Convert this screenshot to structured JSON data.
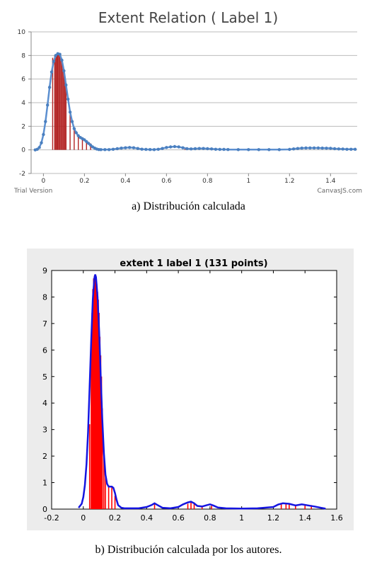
{
  "captions": {
    "a": "a) Distribución calculada",
    "b": "b) Distribución calculada por los autores."
  },
  "watermarks": {
    "left": "Trial Version",
    "right": "CanvasJS.com"
  },
  "chart_data": [
    {
      "type": "line",
      "title": "Extent Relation ( Label 1)",
      "xlabel": "",
      "ylabel": "",
      "xlim": [
        -0.06,
        1.53
      ],
      "ylim": [
        -2,
        10
      ],
      "x_ticks": [
        0,
        0.2,
        0.4,
        0.6,
        0.8,
        1,
        1.2,
        1.4
      ],
      "x_tick_labels": [
        "0",
        "0.2",
        "0.4",
        "0.6",
        "0.8",
        "1",
        "1.2",
        "1.4"
      ],
      "y_ticks": [
        -2,
        0,
        2,
        4,
        6,
        8,
        10
      ],
      "y_tick_labels": [
        "-2",
        "0",
        "2",
        "4",
        "6",
        "8",
        "10"
      ],
      "grid": "horizontal",
      "colors": {
        "curve": "#5b8fd0",
        "markers": "#4a7fbf",
        "spikes": "#b22222",
        "grid": "#bbbbbb"
      },
      "series": [
        {
          "x": [
            -0.04,
            -0.03,
            -0.02,
            -0.01,
            0,
            0.01,
            0.02,
            0.03,
            0.04,
            0.05,
            0.06,
            0.07,
            0.08,
            0.09,
            0.1,
            0.11,
            0.12,
            0.13,
            0.14,
            0.15,
            0.16,
            0.17,
            0.18,
            0.19,
            0.2,
            0.21,
            0.22,
            0.23,
            0.24,
            0.25,
            0.26,
            0.27,
            0.28,
            0.3,
            0.32,
            0.34,
            0.36,
            0.38,
            0.4,
            0.42,
            0.44,
            0.46,
            0.48,
            0.5,
            0.52,
            0.54,
            0.56,
            0.58,
            0.6,
            0.62,
            0.64,
            0.66,
            0.68,
            0.7,
            0.72,
            0.74,
            0.76,
            0.78,
            0.8,
            0.82,
            0.84,
            0.86,
            0.88,
            0.9,
            0.95,
            1.0,
            1.05,
            1.1,
            1.15,
            1.2,
            1.22,
            1.24,
            1.26,
            1.28,
            1.3,
            1.32,
            1.34,
            1.36,
            1.38,
            1.4,
            1.42,
            1.44,
            1.46,
            1.48,
            1.5,
            1.52
          ],
          "y": [
            0,
            0.05,
            0.2,
            0.6,
            1.3,
            2.4,
            3.8,
            5.3,
            6.6,
            7.5,
            8.0,
            8.15,
            8.1,
            7.6,
            6.7,
            5.5,
            4.3,
            3.2,
            2.4,
            1.8,
            1.45,
            1.2,
            1.05,
            0.95,
            0.85,
            0.7,
            0.55,
            0.4,
            0.25,
            0.15,
            0.07,
            0.03,
            0.02,
            0.02,
            0.02,
            0.05,
            0.1,
            0.15,
            0.18,
            0.2,
            0.18,
            0.12,
            0.06,
            0.04,
            0.03,
            0.02,
            0.05,
            0.12,
            0.2,
            0.25,
            0.28,
            0.25,
            0.18,
            0.1,
            0.08,
            0.1,
            0.12,
            0.12,
            0.1,
            0.08,
            0.05,
            0.04,
            0.04,
            0.03,
            0.02,
            0.02,
            0.02,
            0.02,
            0.02,
            0.04,
            0.08,
            0.12,
            0.15,
            0.16,
            0.16,
            0.16,
            0.16,
            0.15,
            0.14,
            0.13,
            0.1,
            0.08,
            0.07,
            0.05,
            0.05,
            0.05
          ]
        }
      ],
      "spikes_x": [
        0.045,
        0.055,
        0.06,
        0.065,
        0.07,
        0.075,
        0.08,
        0.085,
        0.09,
        0.095,
        0.1,
        0.105,
        0.11,
        0.13,
        0.15,
        0.17,
        0.19,
        0.21,
        0.23,
        0.69
      ],
      "spikes_y": [
        7.8,
        8.0,
        8.1,
        8.1,
        8.1,
        8.2,
        8.1,
        7.9,
        7.6,
        7.2,
        6.7,
        6.2,
        5.5,
        3.2,
        1.8,
        1.2,
        0.95,
        0.8,
        0.55,
        0.2
      ]
    },
    {
      "type": "line",
      "title": "extent 1 label 1 (131 points)",
      "xlabel": "",
      "ylabel": "",
      "xlim": [
        -0.2,
        1.6
      ],
      "ylim": [
        0,
        9
      ],
      "x_ticks": [
        -0.2,
        0,
        0.2,
        0.4,
        0.6,
        0.8,
        1,
        1.2,
        1.4,
        1.6
      ],
      "x_tick_labels": [
        "-0.2",
        "0",
        "0.2",
        "0.4",
        "0.6",
        "0.8",
        "1",
        "1.2",
        "1.4",
        "1.6"
      ],
      "y_ticks": [
        0,
        1,
        2,
        3,
        4,
        5,
        6,
        7,
        8,
        9
      ],
      "y_tick_labels": [
        "0",
        "1",
        "2",
        "3",
        "4",
        "5",
        "6",
        "7",
        "8",
        "9"
      ],
      "grid": "off",
      "colors": {
        "curve": "#1515e0",
        "spikes": "#ff0000",
        "background": "#ececec"
      },
      "series": [
        {
          "x": [
            -0.03,
            -0.01,
            0,
            0.01,
            0.02,
            0.03,
            0.04,
            0.05,
            0.06,
            0.07,
            0.075,
            0.08,
            0.09,
            0.1,
            0.11,
            0.12,
            0.13,
            0.14,
            0.15,
            0.16,
            0.17,
            0.18,
            0.19,
            0.2,
            0.21,
            0.22,
            0.24,
            0.26,
            0.28,
            0.3,
            0.35,
            0.4,
            0.43,
            0.45,
            0.47,
            0.5,
            0.55,
            0.6,
            0.63,
            0.66,
            0.68,
            0.7,
            0.72,
            0.75,
            0.78,
            0.8,
            0.82,
            0.85,
            0.9,
            1.0,
            1.1,
            1.2,
            1.23,
            1.26,
            1.3,
            1.34,
            1.38,
            1.42,
            1.46,
            1.5,
            1.53
          ],
          "y": [
            0.05,
            0.2,
            0.45,
            0.9,
            1.7,
            2.9,
            4.6,
            6.4,
            7.9,
            8.7,
            8.85,
            8.75,
            8.0,
            6.7,
            5.0,
            3.4,
            2.1,
            1.3,
            0.95,
            0.85,
            0.85,
            0.85,
            0.8,
            0.6,
            0.35,
            0.15,
            0.05,
            0.03,
            0.03,
            0.03,
            0.03,
            0.08,
            0.15,
            0.22,
            0.15,
            0.05,
            0.03,
            0.08,
            0.18,
            0.25,
            0.28,
            0.22,
            0.12,
            0.1,
            0.15,
            0.18,
            0.14,
            0.06,
            0.03,
            0.02,
            0.03,
            0.08,
            0.17,
            0.22,
            0.2,
            0.14,
            0.18,
            0.14,
            0.1,
            0.05,
            0.02
          ]
        }
      ],
      "spikes_x": [
        0.04,
        0.05,
        0.055,
        0.06,
        0.065,
        0.07,
        0.075,
        0.08,
        0.085,
        0.09,
        0.095,
        0.1,
        0.105,
        0.11,
        0.115,
        0.12,
        0.13,
        0.14,
        0.16,
        0.18,
        0.2,
        0.45,
        0.66,
        0.68,
        0.7,
        0.75,
        0.81,
        1.25,
        1.28,
        1.3,
        1.34,
        1.4,
        1.44
      ],
      "spikes_y": [
        3.2,
        6.0,
        7.4,
        8.3,
        8.7,
        8.8,
        8.8,
        8.7,
        8.5,
        8.2,
        7.9,
        7.4,
        6.5,
        5.8,
        5.0,
        3.8,
        2.2,
        1.3,
        0.9,
        0.85,
        0.5,
        0.2,
        0.2,
        0.3,
        0.25,
        0.1,
        0.12,
        0.2,
        0.2,
        0.2,
        0.15,
        0.15,
        0.15
      ]
    }
  ]
}
